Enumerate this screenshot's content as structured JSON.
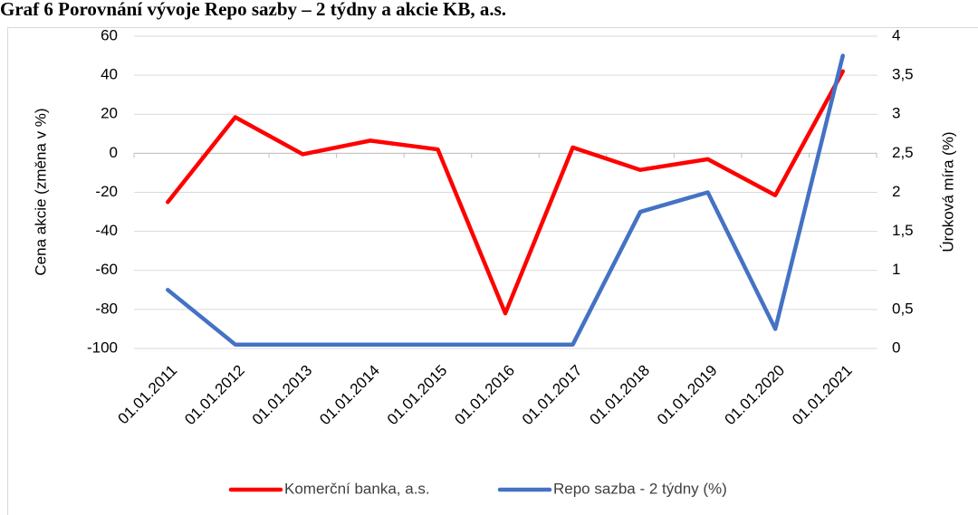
{
  "chart_data": {
    "type": "line",
    "title": "Graf 6 Porovnání vývoje Repo sazby – 2 týdny a akcie KB, a.s.",
    "ylabel": "Cena akcie (změna v %)",
    "y2label": "Úroková míra (%)",
    "categories": [
      "01.01.2011",
      "01.01.2012",
      "01.01.2013",
      "01.01.2014",
      "01.01.2015",
      "01.01.2016",
      "01.01.2017",
      "01.01.2018",
      "01.01.2019",
      "01.01.2020",
      "01.01.2021"
    ],
    "series": [
      {
        "name": "Komerční banka, a.s.",
        "color": "#ff0000",
        "values": [
          -25,
          18.5,
          -0.5,
          6.5,
          2,
          -82,
          3,
          -8.5,
          -3,
          -21.5,
          42
        ]
      },
      {
        "name": "Repo sazba - 2 týdny (%)",
        "color": "#4472c4",
        "axis": "y2",
        "values": [
          0.75,
          0.05,
          0.05,
          0.05,
          0.05,
          0.05,
          0.05,
          1.75,
          2,
          0.25,
          3.75
        ]
      }
    ],
    "ylim": [
      -100,
      60
    ],
    "yticks": [
      -100,
      -80,
      -60,
      -40,
      -20,
      0,
      20,
      40,
      60
    ],
    "y2lim": [
      0,
      4
    ],
    "y2ticks": [
      0,
      {
        "value": 0.5,
        "label": "0,5"
      },
      1,
      {
        "value": 1.5,
        "label": "1,5"
      },
      2,
      {
        "value": 2.5,
        "label": "2,5"
      },
      3,
      {
        "value": 3.5,
        "label": "3,5"
      },
      4
    ],
    "grid": true,
    "legend": "bottom"
  }
}
